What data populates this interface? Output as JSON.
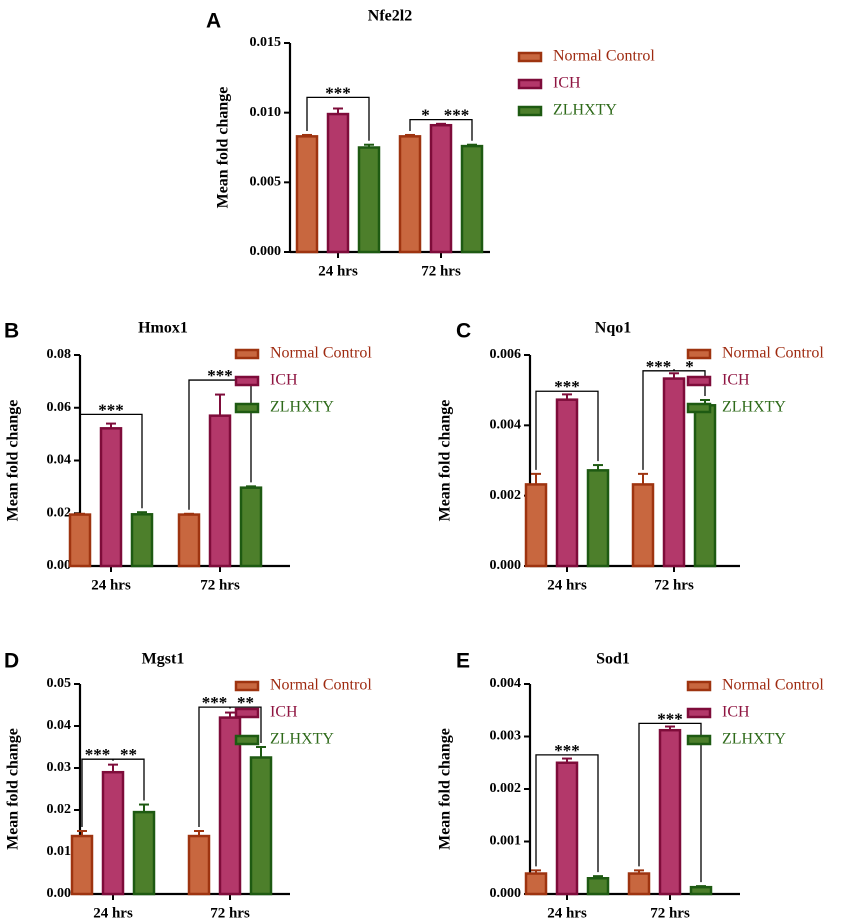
{
  "colors": {
    "normal_fill": "#C8673F",
    "normal_stroke": "#9E3410",
    "ich_fill": "#B3386A",
    "ich_stroke": "#7E0C3A",
    "zlh_fill": "#4D7F2B",
    "zlh_stroke": "#1E5A12",
    "normal_text": "#9E2A10",
    "ich_text": "#8E1440",
    "zlh_text": "#2E6A1A"
  },
  "chart_data": [
    {
      "id": "A",
      "letter": "A",
      "type": "bar",
      "title": "Nfe2l2",
      "ylabel": "Mean fold change",
      "categories": [
        "24 hrs",
        "72 hrs"
      ],
      "ylim": [
        0,
        0.015
      ],
      "yticks": [
        "0.000",
        "0.005",
        "0.010",
        "0.015"
      ],
      "legend": [
        "Normal Control",
        "ICH",
        "ZLHXTY"
      ],
      "series": [
        {
          "name": "Normal Control",
          "values": [
            0.0083,
            0.0083
          ],
          "errors": [
            0.0001,
            0.0001
          ]
        },
        {
          "name": "ICH",
          "values": [
            0.0099,
            0.0091
          ],
          "errors": [
            0.0004,
            0.0001
          ]
        },
        {
          "name": "ZLHXTY",
          "values": [
            0.0075,
            0.0076
          ],
          "errors": [
            0.0002,
            0.0001
          ]
        }
      ],
      "annotations": [
        {
          "label": "***",
          "cat": 0,
          "from": 0,
          "to": 2,
          "level": 0.0111,
          "mid": 1
        },
        {
          "label": "*",
          "cat": 1,
          "from": 0,
          "to": 1,
          "level": 0.0095,
          "mid": 0.5
        },
        {
          "label": "***",
          "cat": 1,
          "from": 1,
          "to": 2,
          "level": 0.0095,
          "mid": 1.5
        }
      ]
    },
    {
      "id": "B",
      "letter": "B",
      "type": "bar",
      "title": "Hmox1",
      "ylabel": "Mean fold change",
      "categories": [
        "24 hrs",
        "72 hrs"
      ],
      "ylim": [
        0,
        0.08
      ],
      "yticks": [
        "0.00",
        "0.02",
        "0.04",
        "0.06",
        "0.08"
      ],
      "legend": [
        "Normal Control",
        "ICH",
        "ZLHXTY"
      ],
      "series": [
        {
          "name": "Normal Control",
          "values": [
            0.0195,
            0.0195
          ],
          "errors": [
            0.0003,
            0.0003
          ]
        },
        {
          "name": "ICH",
          "values": [
            0.0522,
            0.057
          ],
          "errors": [
            0.0018,
            0.008
          ]
        },
        {
          "name": "ZLHXTY",
          "values": [
            0.0196,
            0.0297
          ],
          "errors": [
            0.0008,
            0.0005
          ]
        }
      ],
      "annotations": [
        {
          "label": "***",
          "cat": 0,
          "from": 0,
          "to": 2,
          "level": 0.0575,
          "mid": 1
        },
        {
          "label": "***",
          "cat": 1,
          "from": 0,
          "to": 2,
          "level": 0.0705,
          "mid": 1
        }
      ]
    },
    {
      "id": "C",
      "letter": "C",
      "type": "bar",
      "title": "Nqo1",
      "ylabel": "Mean fold change",
      "categories": [
        "24 hrs",
        "72 hrs"
      ],
      "ylim": [
        0,
        0.006
      ],
      "yticks": [
        "0.000",
        "0.002",
        "0.004",
        "0.006"
      ],
      "legend": [
        "Normal Control",
        "ICH",
        "ZLHXTY"
      ],
      "series": [
        {
          "name": "Normal Control",
          "values": [
            0.00232,
            0.00232
          ],
          "errors": [
            0.0003,
            0.0003
          ]
        },
        {
          "name": "ICH",
          "values": [
            0.00473,
            0.00533
          ],
          "errors": [
            0.00015,
            0.00015
          ]
        },
        {
          "name": "ZLHXTY",
          "values": [
            0.00272,
            0.00457
          ],
          "errors": [
            0.00015,
            0.00015
          ]
        }
      ],
      "annotations": [
        {
          "label": "***",
          "cat": 0,
          "from": 0,
          "to": 2,
          "level": 0.00497,
          "mid": 1
        },
        {
          "label": "***",
          "cat": 1,
          "from": 0,
          "to": 1,
          "level": 0.00555,
          "mid": 0.5
        },
        {
          "label": "*",
          "cat": 1,
          "from": 1,
          "to": 2,
          "level": 0.00555,
          "mid": 1.5
        }
      ]
    },
    {
      "id": "D",
      "letter": "D",
      "type": "bar",
      "title": "Mgst1",
      "ylabel": "Mean fold change",
      "categories": [
        "24 hrs",
        "72 hrs"
      ],
      "ylim": [
        0,
        0.05
      ],
      "yticks": [
        "0.00",
        "0.01",
        "0.02",
        "0.03",
        "0.04",
        "0.05"
      ],
      "legend": [
        "Normal Control",
        "ICH",
        "ZLHXTY"
      ],
      "series": [
        {
          "name": "Normal Control",
          "values": [
            0.0138,
            0.0138
          ],
          "errors": [
            0.0012,
            0.0012
          ]
        },
        {
          "name": "ICH",
          "values": [
            0.029,
            0.042
          ],
          "errors": [
            0.0018,
            0.0012
          ]
        },
        {
          "name": "ZLHXTY",
          "values": [
            0.0195,
            0.0325
          ],
          "errors": [
            0.0018,
            0.0025
          ]
        }
      ],
      "annotations": [
        {
          "label": "***",
          "cat": 0,
          "from": 0,
          "to": 1,
          "level": 0.0321,
          "mid": 0.5
        },
        {
          "label": "**",
          "cat": 0,
          "from": 1,
          "to": 2,
          "level": 0.0321,
          "mid": 1.5
        },
        {
          "label": "***",
          "cat": 1,
          "from": 0,
          "to": 1,
          "level": 0.0445,
          "mid": 0.5
        },
        {
          "label": "**",
          "cat": 1,
          "from": 1,
          "to": 2,
          "level": 0.0445,
          "mid": 1.5
        }
      ]
    },
    {
      "id": "E",
      "letter": "E",
      "type": "bar",
      "title": "Sod1",
      "ylabel": "Mean fold change",
      "categories": [
        "24 hrs",
        "72 hrs"
      ],
      "ylim": [
        0,
        0.004
      ],
      "yticks": [
        "0.000",
        "0.001",
        "0.002",
        "0.003",
        "0.004"
      ],
      "legend": [
        "Normal Control",
        "ICH",
        "ZLHXTY"
      ],
      "series": [
        {
          "name": "Normal Control",
          "values": [
            0.00039,
            0.00039
          ],
          "errors": [
            6e-05,
            6e-05
          ]
        },
        {
          "name": "ICH",
          "values": [
            0.0025,
            0.00312
          ],
          "errors": [
            8e-05,
            7e-05
          ]
        },
        {
          "name": "ZLHXTY",
          "values": [
            0.0003,
            0.00013
          ],
          "errors": [
            4e-05,
            2e-05
          ]
        }
      ],
      "annotations": [
        {
          "label": "***",
          "cat": 0,
          "from": 0,
          "to": 2,
          "level": 0.00265,
          "mid": 1
        },
        {
          "label": "***",
          "cat": 1,
          "from": 0,
          "to": 2,
          "level": 0.00325,
          "mid": 1
        }
      ]
    }
  ]
}
